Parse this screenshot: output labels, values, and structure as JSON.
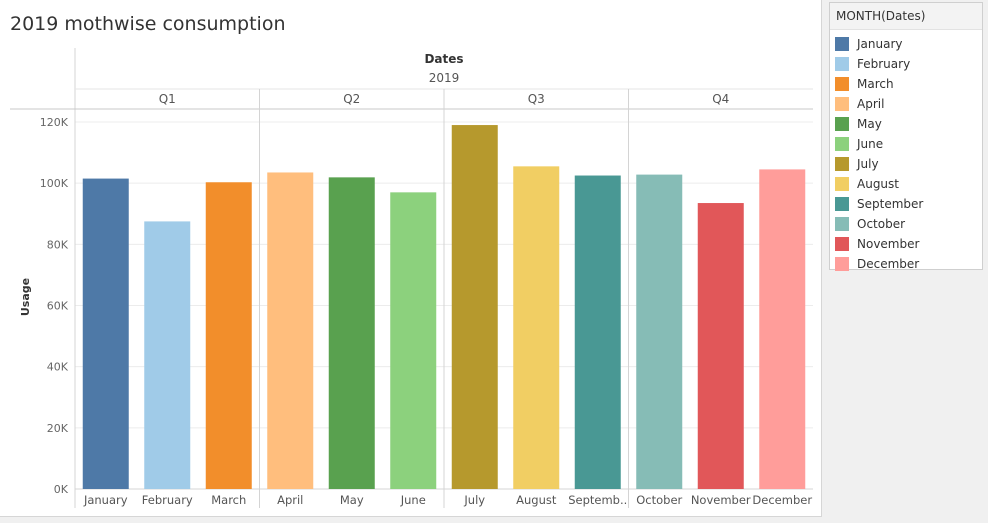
{
  "title": "2019 mothwise consumption",
  "legend": {
    "title": "MONTH(Dates)",
    "items": [
      {
        "label": "January",
        "color": "#4e79a7"
      },
      {
        "label": "February",
        "color": "#a0cbe8"
      },
      {
        "label": "March",
        "color": "#f28e2b"
      },
      {
        "label": "April",
        "color": "#ffbe7d"
      },
      {
        "label": "May",
        "color": "#59a14f"
      },
      {
        "label": "June",
        "color": "#8cd17d"
      },
      {
        "label": "July",
        "color": "#b6992d"
      },
      {
        "label": "August",
        "color": "#f1ce63"
      },
      {
        "label": "September",
        "color": "#499894"
      },
      {
        "label": "October",
        "color": "#86bcb6"
      },
      {
        "label": "November",
        "color": "#e15759"
      },
      {
        "label": "December",
        "color": "#ff9d9a"
      }
    ]
  },
  "chart_data": {
    "type": "bar",
    "header_title": "Dates",
    "year": "2019",
    "quarters": [
      {
        "label": "Q1",
        "months": [
          "January",
          "February",
          "March"
        ]
      },
      {
        "label": "Q2",
        "months": [
          "April",
          "May",
          "June"
        ]
      },
      {
        "label": "Q3",
        "months": [
          "July",
          "August",
          "September"
        ]
      },
      {
        "label": "Q4",
        "months": [
          "October",
          "November",
          "December"
        ]
      }
    ],
    "categories": [
      "January",
      "February",
      "March",
      "April",
      "May",
      "June",
      "July",
      "August",
      "September",
      "October",
      "November",
      "December"
    ],
    "category_tick_labels": [
      "January",
      "February",
      "March",
      "April",
      "May",
      "June",
      "July",
      "August",
      "Septemb..",
      "October",
      "November",
      "December"
    ],
    "values": [
      101500,
      87500,
      100300,
      103500,
      101900,
      97000,
      119000,
      105500,
      102500,
      102800,
      93500,
      104500
    ],
    "colors": [
      "#4e79a7",
      "#a0cbe8",
      "#f28e2b",
      "#ffbe7d",
      "#59a14f",
      "#8cd17d",
      "#b6992d",
      "#f1ce63",
      "#499894",
      "#86bcb6",
      "#e15759",
      "#ff9d9a"
    ],
    "ylabel": "Usage",
    "ylim": [
      0,
      120000
    ],
    "yticks": [
      0,
      20000,
      40000,
      60000,
      80000,
      100000,
      120000
    ],
    "ytick_labels": [
      "0K",
      "20K",
      "40K",
      "60K",
      "80K",
      "100K",
      "120K"
    ],
    "grid": true,
    "legend_position": "right"
  }
}
